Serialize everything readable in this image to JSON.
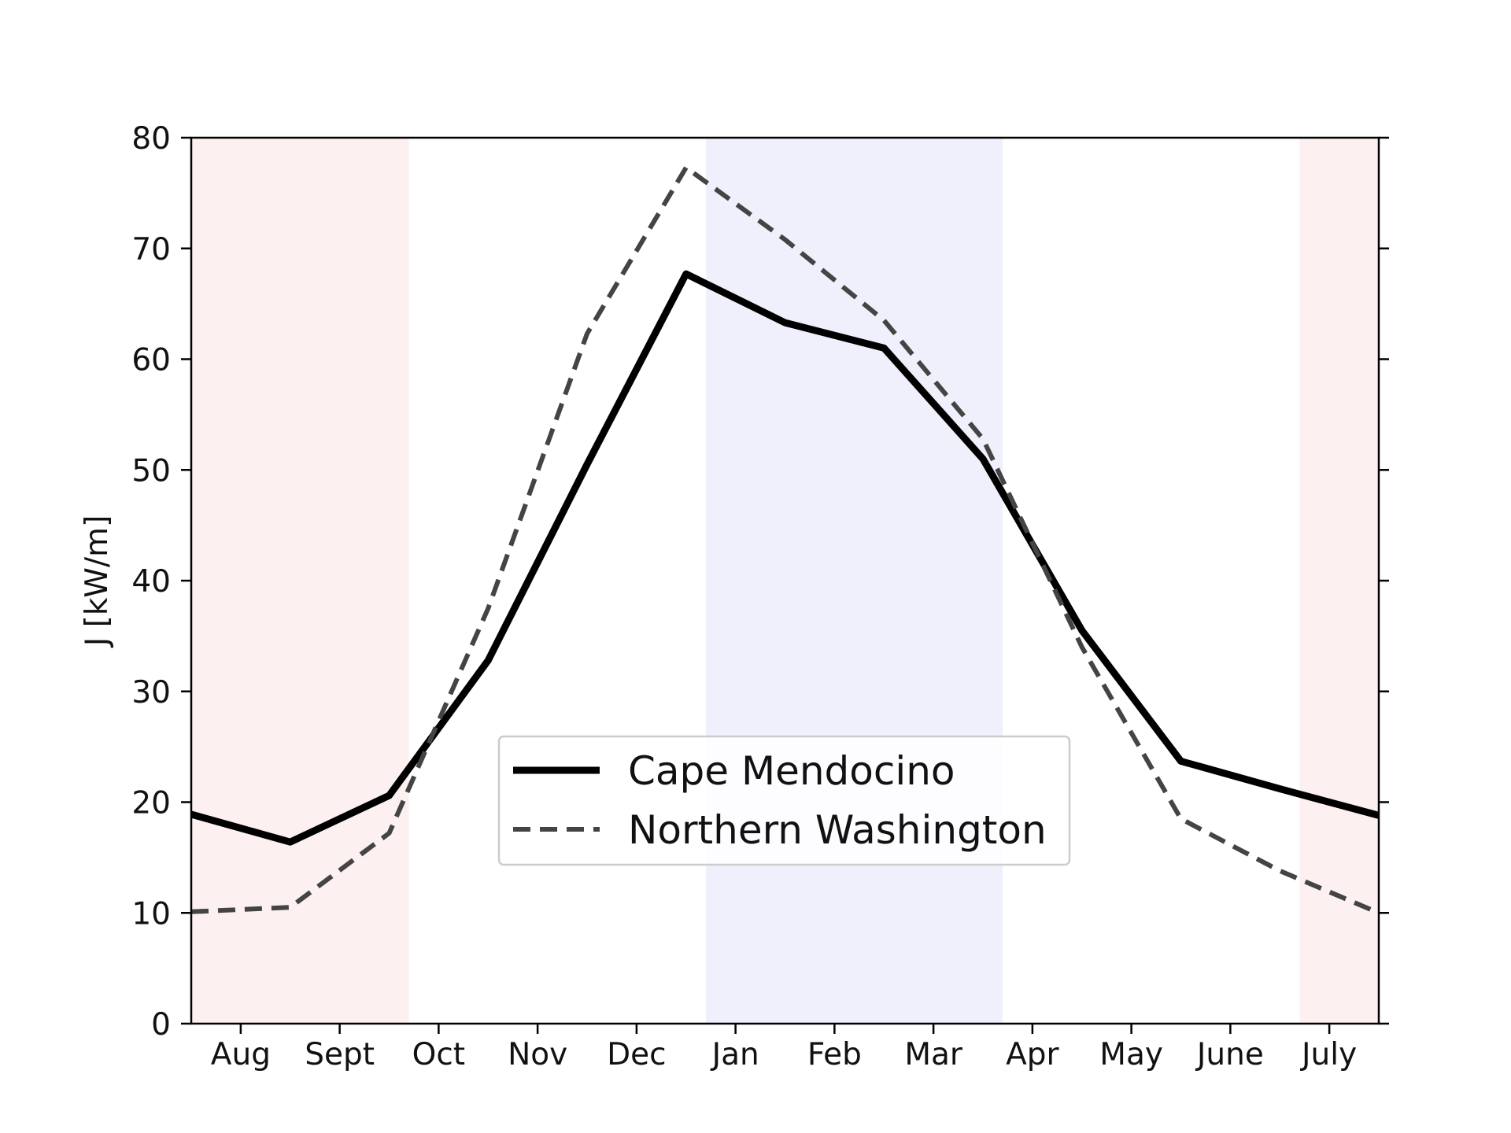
{
  "chart_data": {
    "type": "line",
    "title": "",
    "xlabel": "",
    "ylabel": "J [kW/m]",
    "categories": [
      "Aug",
      "Sept",
      "Oct",
      "Nov",
      "Dec",
      "Jan",
      "Feb",
      "Mar",
      "Apr",
      "May",
      "June",
      "July"
    ],
    "x": [
      0,
      0.5,
      1,
      1.5,
      2,
      2.5,
      3,
      3.5,
      4,
      4.5,
      5,
      5.5,
      6,
      6.5,
      7,
      7.5,
      8,
      8.5,
      9,
      9.5,
      10,
      10.5,
      11,
      11.5
    ],
    "xlim": [
      -0.5,
      11.5
    ],
    "ylim": [
      0,
      80
    ],
    "yticks": [
      0,
      10,
      20,
      30,
      40,
      50,
      60,
      70,
      80
    ],
    "grid": false,
    "legend_position": "center",
    "series": [
      {
        "name": "Cape Mendocino",
        "style": "solid",
        "color": "#000000",
        "points": [
          [
            -0.5,
            18.9
          ],
          [
            0.5,
            16.4
          ],
          [
            1.5,
            20.6
          ],
          [
            2.5,
            32.8
          ],
          [
            3.5,
            50.5
          ],
          [
            4.5,
            67.7
          ],
          [
            5.5,
            63.3
          ],
          [
            6.5,
            61.0
          ],
          [
            7.5,
            51.0
          ],
          [
            8.5,
            35.5
          ],
          [
            9.5,
            23.7
          ],
          [
            10.5,
            21.2
          ],
          [
            11.5,
            18.8
          ]
        ]
      },
      {
        "name": "Northern Washington",
        "style": "dashed",
        "color": "#444444",
        "points": [
          [
            -0.5,
            10.1
          ],
          [
            0.5,
            10.5
          ],
          [
            1.5,
            17.2
          ],
          [
            2.5,
            37.5
          ],
          [
            3.5,
            62.3
          ],
          [
            4.5,
            77.3
          ],
          [
            5.5,
            70.8
          ],
          [
            6.5,
            63.5
          ],
          [
            7.5,
            52.8
          ],
          [
            8.5,
            34.0
          ],
          [
            9.5,
            18.5
          ],
          [
            10.5,
            13.8
          ],
          [
            11.5,
            10.0
          ]
        ]
      }
    ],
    "shaded_regions": [
      {
        "x0": -0.5,
        "x1": 1.7,
        "color": "#fdf0f0"
      },
      {
        "x0": 4.7,
        "x1": 7.7,
        "color": "#f0f0fd"
      },
      {
        "x0": 10.7,
        "x1": 11.5,
        "color": "#fdf0f0"
      }
    ]
  }
}
